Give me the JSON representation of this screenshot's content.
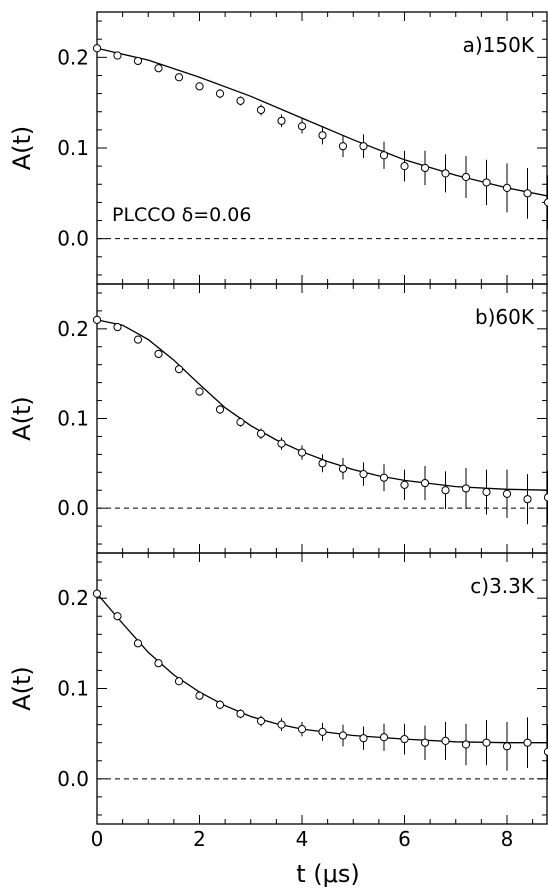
{
  "figure": {
    "xlabel": "t  (μs)",
    "x_ticks": [
      "0",
      "2",
      "4",
      "6",
      "8"
    ],
    "panel_annotation": "PLCCO  δ=0.06"
  },
  "chart_data": [
    {
      "type": "scatter",
      "panel_label": "a)150K",
      "ylabel": "A(t)",
      "xlim": [
        0,
        8.8
      ],
      "ylim": [
        -0.05,
        0.25
      ],
      "y_ticks": [
        "0.0",
        "0.1",
        "0.2"
      ],
      "baseline": 0.0,
      "series": [
        {
          "x": [
            0.0,
            0.4,
            0.8,
            1.2,
            1.6,
            2.0,
            2.4,
            2.8,
            3.2,
            3.6,
            4.0,
            4.4,
            4.8,
            5.2,
            5.6,
            6.0,
            6.4,
            6.8,
            7.2,
            7.6,
            8.0,
            8.4,
            8.8
          ],
          "y": [
            0.21,
            0.202,
            0.196,
            0.188,
            0.178,
            0.168,
            0.16,
            0.152,
            0.142,
            0.13,
            0.124,
            0.114,
            0.102,
            0.102,
            0.092,
            0.08,
            0.078,
            0.072,
            0.068,
            0.062,
            0.056,
            0.05,
            0.04
          ],
          "yerr": [
            0.003,
            0.003,
            0.003,
            0.003,
            0.004,
            0.004,
            0.005,
            0.005,
            0.006,
            0.007,
            0.008,
            0.01,
            0.012,
            0.013,
            0.015,
            0.017,
            0.019,
            0.021,
            0.023,
            0.025,
            0.027,
            0.028,
            0.03
          ]
        }
      ],
      "fit": {
        "x": [
          0.0,
          1.0,
          2.0,
          3.0,
          4.0,
          5.0,
          6.0,
          7.0,
          8.0,
          8.8
        ],
        "y": [
          0.21,
          0.197,
          0.178,
          0.157,
          0.133,
          0.109,
          0.087,
          0.07,
          0.056,
          0.047
        ]
      }
    },
    {
      "type": "scatter",
      "panel_label": "b)60K",
      "ylabel": "A(t)",
      "xlim": [
        0,
        8.8
      ],
      "ylim": [
        -0.05,
        0.25
      ],
      "y_ticks": [
        "0.0",
        "0.1",
        "0.2"
      ],
      "baseline": 0.0,
      "series": [
        {
          "x": [
            0.0,
            0.4,
            0.8,
            1.2,
            1.6,
            2.0,
            2.4,
            2.8,
            3.2,
            3.6,
            4.0,
            4.4,
            4.8,
            5.2,
            5.6,
            6.0,
            6.4,
            6.8,
            7.2,
            7.6,
            8.0,
            8.4,
            8.8
          ],
          "y": [
            0.21,
            0.202,
            0.188,
            0.172,
            0.155,
            0.13,
            0.11,
            0.096,
            0.083,
            0.072,
            0.062,
            0.05,
            0.044,
            0.038,
            0.034,
            0.026,
            0.028,
            0.02,
            0.022,
            0.018,
            0.016,
            0.01,
            0.012
          ],
          "yerr": [
            0.003,
            0.003,
            0.003,
            0.003,
            0.004,
            0.004,
            0.005,
            0.005,
            0.006,
            0.007,
            0.008,
            0.01,
            0.012,
            0.013,
            0.015,
            0.017,
            0.019,
            0.021,
            0.023,
            0.025,
            0.027,
            0.028,
            0.03
          ]
        }
      ],
      "fit": {
        "x": [
          0.0,
          0.5,
          1.0,
          1.5,
          2.0,
          2.5,
          3.0,
          3.5,
          4.0,
          4.5,
          5.0,
          5.5,
          6.0,
          7.0,
          8.0,
          8.8
        ],
        "y": [
          0.21,
          0.204,
          0.188,
          0.165,
          0.138,
          0.112,
          0.092,
          0.076,
          0.063,
          0.052,
          0.043,
          0.036,
          0.031,
          0.024,
          0.021,
          0.02
        ]
      }
    },
    {
      "type": "scatter",
      "panel_label": "c)3.3K",
      "ylabel": "A(t)",
      "xlim": [
        0,
        8.8
      ],
      "ylim": [
        -0.05,
        0.25
      ],
      "y_ticks": [
        "0.0",
        "0.1",
        "0.2"
      ],
      "baseline": 0.0,
      "series": [
        {
          "x": [
            0.0,
            0.4,
            0.8,
            1.2,
            1.6,
            2.0,
            2.4,
            2.8,
            3.2,
            3.6,
            4.0,
            4.4,
            4.8,
            5.2,
            5.6,
            6.0,
            6.4,
            6.8,
            7.2,
            7.6,
            8.0,
            8.4,
            8.8
          ],
          "y": [
            0.205,
            0.18,
            0.15,
            0.128,
            0.108,
            0.092,
            0.082,
            0.072,
            0.064,
            0.06,
            0.055,
            0.052,
            0.048,
            0.045,
            0.046,
            0.044,
            0.04,
            0.042,
            0.038,
            0.04,
            0.036,
            0.04,
            0.03
          ],
          "yerr": [
            0.003,
            0.003,
            0.003,
            0.003,
            0.004,
            0.004,
            0.005,
            0.005,
            0.006,
            0.007,
            0.008,
            0.01,
            0.012,
            0.013,
            0.015,
            0.017,
            0.019,
            0.021,
            0.023,
            0.025,
            0.027,
            0.028,
            0.03
          ]
        }
      ],
      "fit": {
        "x": [
          0.0,
          0.5,
          1.0,
          1.5,
          2.0,
          2.5,
          3.0,
          3.5,
          4.0,
          5.0,
          6.0,
          7.0,
          8.0,
          8.8
        ],
        "y": [
          0.205,
          0.172,
          0.14,
          0.115,
          0.096,
          0.081,
          0.069,
          0.061,
          0.055,
          0.048,
          0.044,
          0.041,
          0.04,
          0.04
        ]
      }
    }
  ]
}
